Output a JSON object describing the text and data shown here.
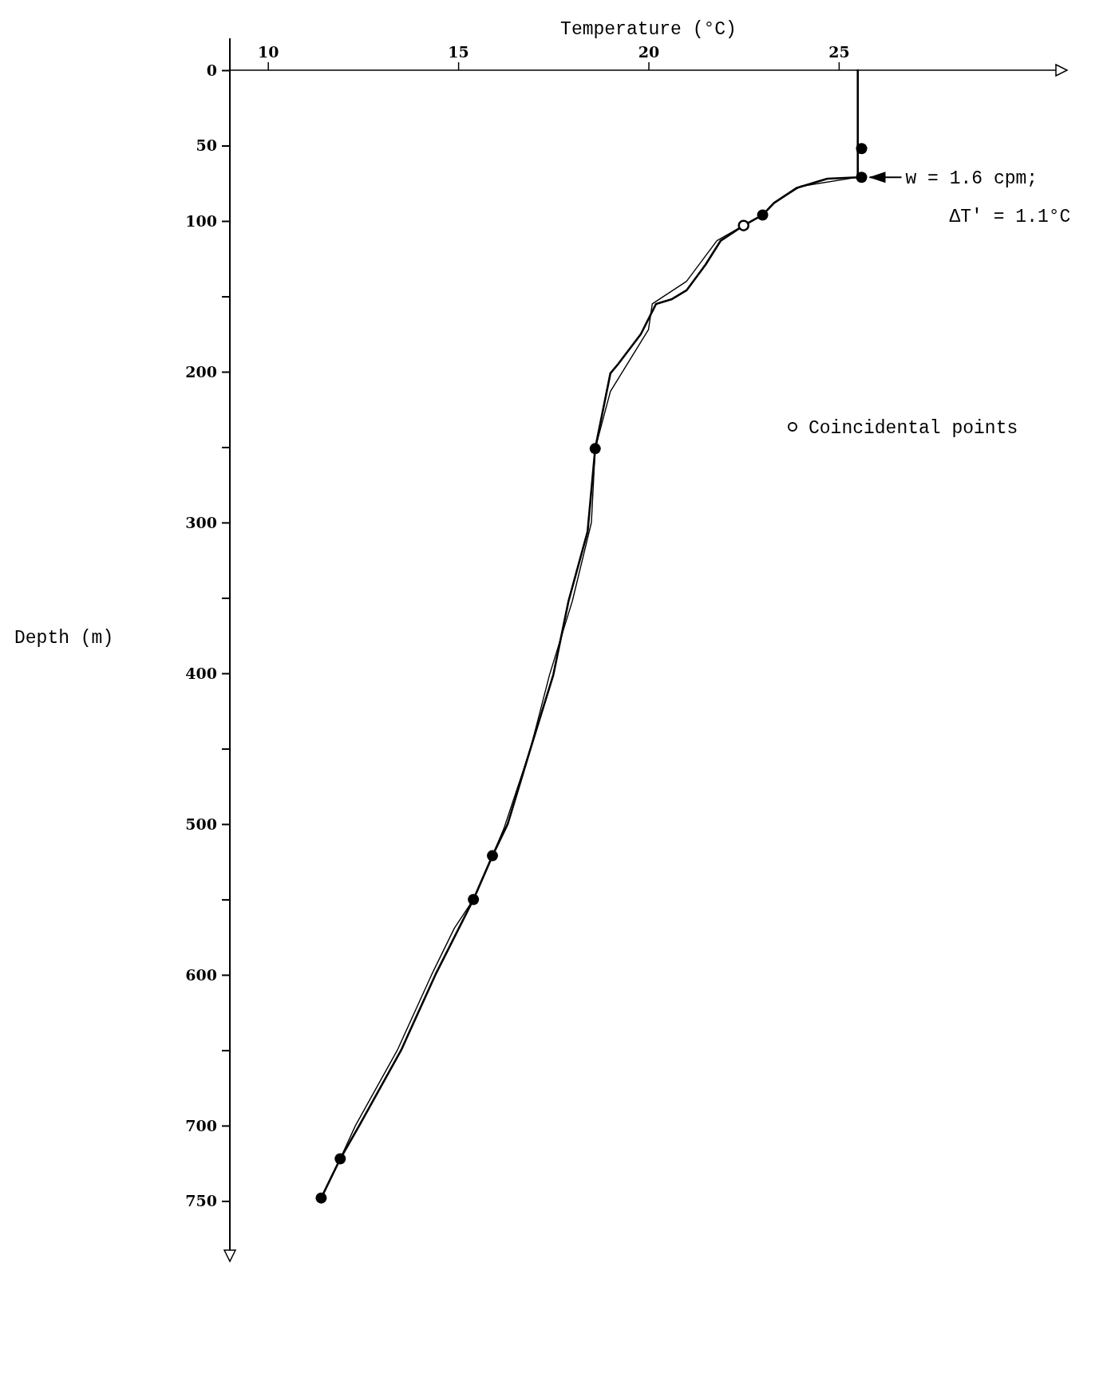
{
  "chart_data": {
    "type": "line",
    "xlabel": "Temperature (°C)",
    "ylabel": "Depth (m)",
    "xlim": [
      9,
      31
    ],
    "xticks": [
      10,
      15,
      20,
      25
    ],
    "ylim": [
      790,
      0
    ],
    "yticks": [
      0,
      50,
      100,
      {
        "value": 150,
        "label": null
      },
      200,
      {
        "value": 250,
        "label": null
      },
      300,
      {
        "value": 350,
        "label": null
      },
      400,
      {
        "value": 450,
        "label": null
      },
      500,
      {
        "value": 550,
        "label": null
      },
      600,
      {
        "value": 650,
        "label": null
      },
      700,
      750
    ],
    "grid": false,
    "legend": "right",
    "marker": "none",
    "line_style": "solid",
    "series": [
      {
        "color": "#000000",
        "x": [
          25.5,
          25.5,
          24.7,
          23.9,
          23.3,
          23.0,
          22.5,
          21.9,
          21.5,
          21.0,
          20.6,
          20.2,
          19.8,
          19.2,
          19.0,
          18.6,
          18.4,
          17.9,
          17.5,
          16.9,
          16.3,
          15.9,
          15.4,
          14.4,
          13.5,
          12.4,
          11.9,
          11.4
        ],
        "values": [
          0,
          71,
          72,
          78,
          88,
          96,
          103,
          113,
          129,
          146,
          152,
          155,
          175,
          195,
          201,
          251,
          306,
          352,
          401,
          450,
          500,
          521,
          550,
          600,
          650,
          700,
          722,
          748
        ]
      },
      {
        "color": "#000000",
        "x": [
          25.5,
          25.5,
          24.0,
          23.3,
          23.0,
          22.5,
          21.8,
          21.0,
          20.1,
          20.0,
          19.0,
          18.6,
          18.5,
          18.0,
          17.4,
          16.9,
          16.2,
          15.9,
          15.4,
          14.9,
          14.3,
          13.4,
          12.3,
          11.9,
          11.4
        ],
        "values": [
          0,
          71,
          77,
          88,
          96,
          103,
          113,
          140,
          155,
          172,
          213,
          251,
          300,
          352,
          401,
          450,
          503,
          521,
          550,
          569,
          600,
          650,
          700,
          722,
          748
        ]
      },
      {
        "type": "scatter",
        "marker": "circle",
        "color": "#000000",
        "x": [
          25.6,
          25.6,
          23.0,
          18.6,
          15.9,
          15.4,
          11.9,
          11.4
        ],
        "values": [
          52,
          71,
          96,
          251,
          521,
          550,
          722,
          748
        ]
      },
      {
        "type": "scatter",
        "marker": "open_circle",
        "name": "Coincidental points",
        "color": "#000000",
        "x": [
          22.5
        ],
        "values": [
          103
        ]
      }
    ],
    "annotations": [
      {
        "text": "w = 1.6 cpm; ΔT' = 1.1°C",
        "x": 25.6,
        "y": 71
      }
    ]
  }
}
